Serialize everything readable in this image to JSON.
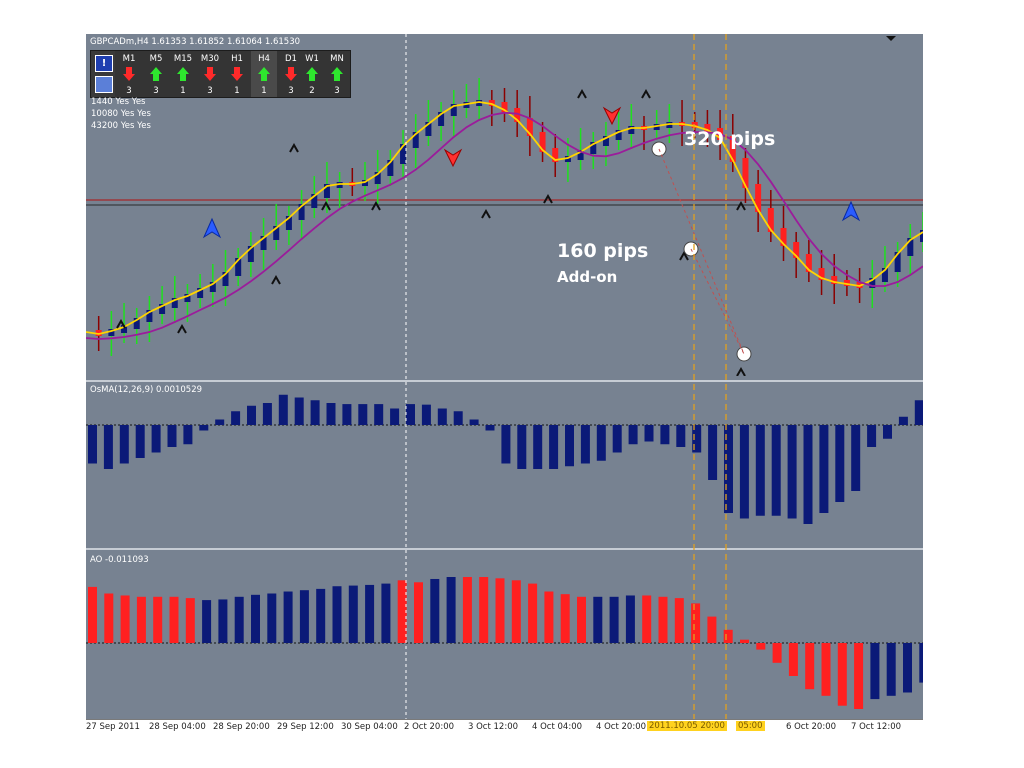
{
  "window": {
    "symbol_info": "GBPCADm,H4  1.61353 1.61852 1.61064 1.61530"
  },
  "timeframe_panel": {
    "alert_icon": "exclamation-icon",
    "settings_icon": "chart-settings-icon",
    "items": [
      {
        "label": "M1",
        "direction": "down",
        "count": "3"
      },
      {
        "label": "M5",
        "direction": "up",
        "count": "3"
      },
      {
        "label": "M15",
        "direction": "up",
        "count": "1"
      },
      {
        "label": "M30",
        "direction": "down",
        "count": "3"
      },
      {
        "label": "H1",
        "direction": "down",
        "count": "1"
      },
      {
        "label": "H4",
        "direction": "up",
        "count": "1"
      },
      {
        "label": "D1",
        "direction": "down",
        "count": "3"
      },
      {
        "label": "W1",
        "direction": "up",
        "count": "2"
      },
      {
        "label": "MN",
        "direction": "up",
        "count": "3"
      }
    ],
    "up_color": "#2ee62e",
    "down_color": "#ff2a2a"
  },
  "settings_lines": [
    "1440 Yes Yes",
    "10080 Yes Yes",
    "43200 Yes Yes"
  ],
  "annotations": {
    "pips_320": "320 pips",
    "pips_160": "160 pips",
    "add_on": "Add-on"
  },
  "osma": {
    "label": "OsMA(12,26,9) 0.0010529",
    "color": "#0b1a78",
    "values": [
      -0.7,
      -0.8,
      -0.7,
      -0.6,
      -0.5,
      -0.4,
      -0.35,
      -0.1,
      0.1,
      0.25,
      0.35,
      0.4,
      0.55,
      0.5,
      0.45,
      0.4,
      0.38,
      0.38,
      0.38,
      0.3,
      0.38,
      0.37,
      0.3,
      0.25,
      0.1,
      -0.1,
      -0.7,
      -0.8,
      -0.8,
      -0.8,
      -0.75,
      -0.7,
      -0.65,
      -0.5,
      -0.35,
      -0.3,
      -0.35,
      -0.4,
      -0.5,
      -1.0,
      -1.6,
      -1.7,
      -1.65,
      -1.65,
      -1.7,
      -1.8,
      -1.6,
      -1.4,
      -1.2,
      -0.4,
      -0.25,
      0.15,
      0.45
    ]
  },
  "ao": {
    "label": "AO -0.011093",
    "bull_color": "#0b1a78",
    "bear_color": "#ff2020",
    "values": [
      0.85,
      0.75,
      0.72,
      0.7,
      0.7,
      0.7,
      0.68,
      0.65,
      0.66,
      0.7,
      0.73,
      0.75,
      0.78,
      0.8,
      0.82,
      0.86,
      0.87,
      0.88,
      0.9,
      0.95,
      0.92,
      0.97,
      1.0,
      1.0,
      1.0,
      0.98,
      0.95,
      0.9,
      0.78,
      0.74,
      0.7,
      0.7,
      0.7,
      0.72,
      0.72,
      0.7,
      0.68,
      0.6,
      0.4,
      0.2,
      0.05,
      -0.1,
      -0.3,
      -0.5,
      -0.7,
      -0.8,
      -0.95,
      -1.0,
      -0.85,
      -0.8,
      -0.75,
      -0.6
    ],
    "ao_colors": [
      "r",
      "r",
      "r",
      "r",
      "r",
      "r",
      "r",
      "b",
      "b",
      "b",
      "b",
      "b",
      "b",
      "b",
      "b",
      "b",
      "b",
      "b",
      "b",
      "r",
      "r",
      "b",
      "b",
      "r",
      "r",
      "r",
      "r",
      "r",
      "r",
      "r",
      "r",
      "b",
      "b",
      "b",
      "r",
      "r",
      "r",
      "r",
      "r",
      "r",
      "r",
      "r",
      "r",
      "r",
      "r",
      "r",
      "r",
      "r",
      "b",
      "b",
      "b",
      "b"
    ]
  },
  "xaxis": {
    "ticks": [
      "27 Sep 2011",
      "28 Sep 04:00",
      "28 Sep 20:00",
      "29 Sep 12:00",
      "30 Sep 04:00",
      "2 Oct 20:00",
      "3 Oct 12:00",
      "4 Oct 04:00",
      "4 Oct 20:00",
      "2011.10.05 20:00",
      "05:00",
      "6 Oct 20:00",
      "7 Oct 12:00"
    ]
  },
  "colors": {
    "background": "#778291",
    "bull_candle": "#0b1a78",
    "bear_candle": "#ff2020",
    "wick_up": "#1ee01e",
    "wick_down": "#8b0000",
    "fast_ma": "#ffd400",
    "slow_ma": "#9b1c9b",
    "resistance_line": "#b01010",
    "vertical_marker": "#e0a020"
  }
}
